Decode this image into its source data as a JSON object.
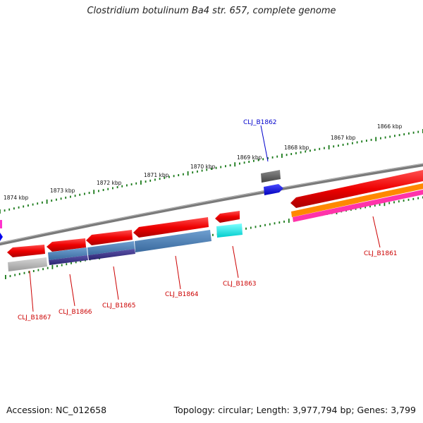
{
  "title": "Clostridium botulinum Ba4 str. 657, complete genome",
  "footer": {
    "accession": "Accession: NC_012658",
    "info": "Topology: circular; Length: 3,977,794 bp; Genes: 3,799"
  },
  "colors": {
    "backbone": "#7a7a7a",
    "tick": "#1a7a1a",
    "label_red": "#cc0000",
    "label_blue": "#0000cc"
  },
  "ticks": {
    "outer": [
      {
        "label": "1874 kbp"
      },
      {
        "label": "1873 kbp"
      },
      {
        "label": "1872 kbp"
      },
      {
        "label": "1871 kbp"
      },
      {
        "label": "1870 kbp"
      },
      {
        "label": "1869 kbp"
      },
      {
        "label": "1868 kbp"
      },
      {
        "label": "1867 kbp"
      },
      {
        "label": "1866 kbp"
      }
    ]
  },
  "genes": [
    {
      "name": "CLJ_B1867",
      "color": "#cc0000"
    },
    {
      "name": "CLJ_B1866",
      "color": "#cc0000"
    },
    {
      "name": "CLJ_B1865",
      "color": "#cc0000"
    },
    {
      "name": "CLJ_B1864",
      "color": "#cc0000"
    },
    {
      "name": "CLJ_B1863",
      "color": "#cc0000"
    },
    {
      "name": "CLJ_B1862",
      "color": "#0000cc"
    },
    {
      "name": "CLJ_B1861",
      "color": "#cc0000"
    }
  ]
}
